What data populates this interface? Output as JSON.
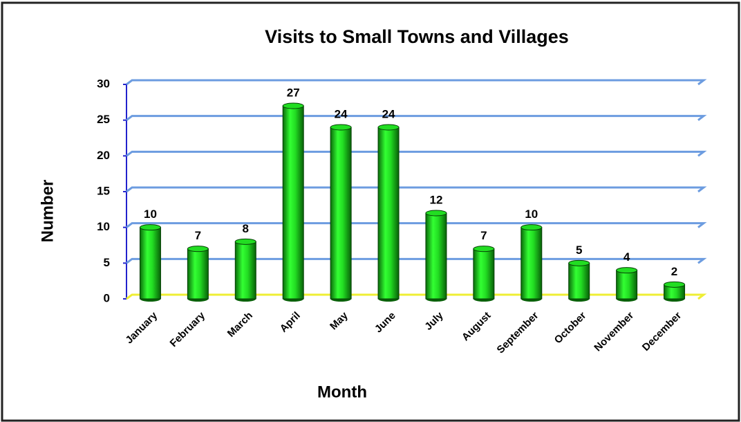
{
  "chart_data": {
    "type": "bar",
    "title": "Visits to Small Towns and Villages",
    "x_label": "Month",
    "y_label": "Number",
    "categories": [
      "January",
      "February",
      "March",
      "April",
      "May",
      "June",
      "July",
      "August",
      "September",
      "October",
      "November",
      "December"
    ],
    "values": [
      10,
      7,
      8,
      27,
      24,
      24,
      12,
      7,
      10,
      5,
      4,
      2
    ],
    "color": "#22dd22",
    "ylim": [
      0,
      30
    ],
    "yticks": [
      0,
      5,
      10,
      15,
      20,
      25,
      30
    ],
    "grid": true
  }
}
